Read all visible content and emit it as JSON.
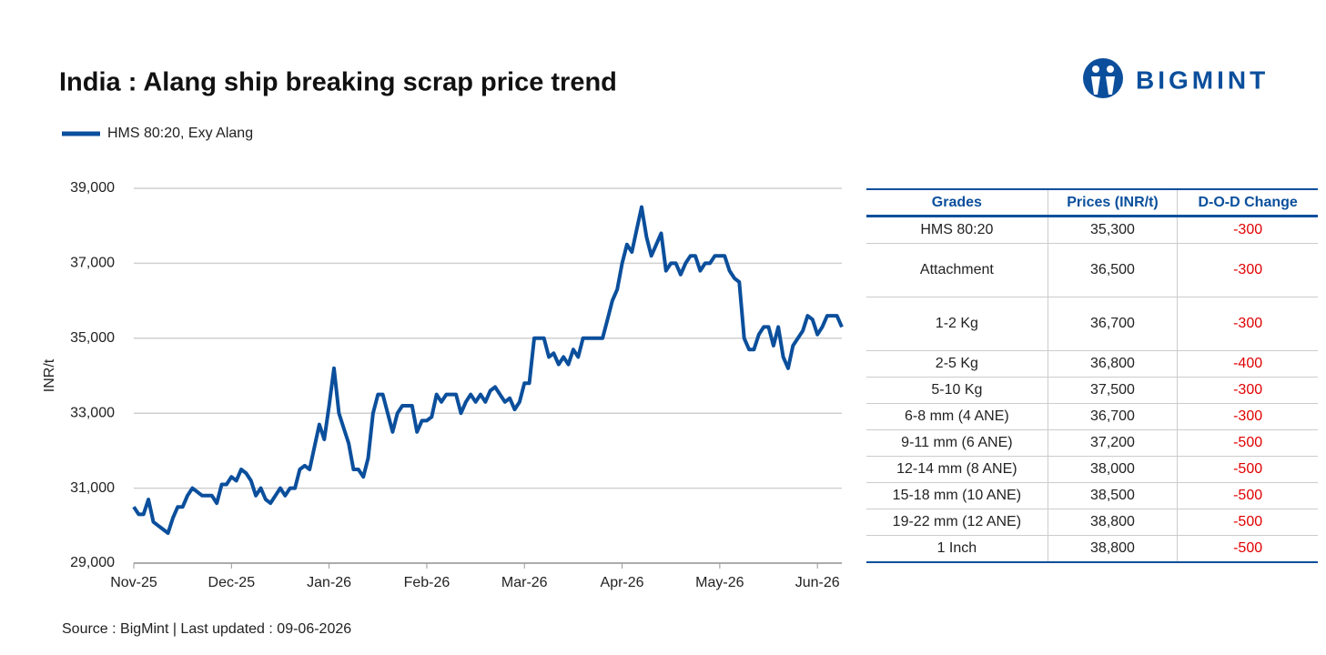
{
  "brand": "BIGMINT",
  "source": "Source : BigMint | Last updated : 09-06-2026",
  "chart_data": {
    "type": "line",
    "title": "India : Alang ship breaking scrap price trend",
    "y_label": "INR/t",
    "legend": "top-left",
    "grid": true,
    "ylim": [
      29000,
      39000
    ],
    "yticks": [
      {
        "value": 29000,
        "label": "29,000"
      },
      {
        "value": 31000,
        "label": "31,000"
      },
      {
        "value": 33000,
        "label": "33,000"
      },
      {
        "value": 35000,
        "label": "35,000"
      },
      {
        "value": 37000,
        "label": "37,000"
      },
      {
        "value": 39000,
        "label": "39,000"
      }
    ],
    "categories": [
      "Nov-25",
      null,
      null,
      null,
      null,
      null,
      null,
      null,
      null,
      null,
      null,
      null,
      null,
      null,
      null,
      null,
      null,
      null,
      null,
      null,
      "Dec-25",
      null,
      null,
      null,
      null,
      null,
      null,
      null,
      null,
      null,
      null,
      null,
      null,
      null,
      null,
      null,
      null,
      null,
      null,
      null,
      "Jan-26",
      null,
      null,
      null,
      null,
      null,
      null,
      null,
      null,
      null,
      null,
      null,
      null,
      null,
      null,
      null,
      null,
      null,
      null,
      null,
      "Feb-26",
      null,
      null,
      null,
      null,
      null,
      null,
      null,
      null,
      null,
      null,
      null,
      null,
      null,
      null,
      null,
      null,
      null,
      null,
      null,
      "Mar-26",
      null,
      null,
      null,
      null,
      null,
      null,
      null,
      null,
      null,
      null,
      null,
      null,
      null,
      null,
      null,
      null,
      null,
      null,
      null,
      "Apr-26",
      null,
      null,
      null,
      null,
      null,
      null,
      null,
      null,
      null,
      null,
      null,
      null,
      null,
      null,
      null,
      null,
      null,
      null,
      null,
      "May-26",
      null,
      null,
      null,
      null,
      null,
      null,
      null,
      null,
      null,
      null,
      null,
      null,
      null,
      null,
      null,
      null,
      null,
      null,
      null,
      "Jun-26",
      null,
      null,
      null,
      null,
      null
    ],
    "series": [
      {
        "name": "HMS 80:20, Exy Alang",
        "color": "#0b4f9c",
        "values": [
          30500,
          30300,
          30300,
          30700,
          30100,
          30000,
          29900,
          29800,
          30200,
          30500,
          30500,
          30800,
          31000,
          30900,
          30800,
          30800,
          30800,
          30600,
          31100,
          31100,
          31300,
          31200,
          31500,
          31400,
          31200,
          30800,
          31000,
          30700,
          30600,
          30800,
          31000,
          30800,
          31000,
          31000,
          31500,
          31600,
          31500,
          32100,
          32700,
          32300,
          33200,
          34200,
          33000,
          32600,
          32200,
          31500,
          31500,
          31300,
          31800,
          33000,
          33500,
          33500,
          33000,
          32500,
          33000,
          33200,
          33200,
          33200,
          32500,
          32800,
          32800,
          32900,
          33500,
          33300,
          33500,
          33500,
          33500,
          33000,
          33300,
          33500,
          33300,
          33500,
          33300,
          33600,
          33700,
          33500,
          33300,
          33400,
          33100,
          33300,
          33800,
          33800,
          35000,
          35000,
          35000,
          34500,
          34600,
          34300,
          34500,
          34300,
          34700,
          34500,
          35000,
          35000,
          35000,
          35000,
          35000,
          35500,
          36000,
          36300,
          37000,
          37500,
          37300,
          37900,
          38500,
          37700,
          37200,
          37500,
          37800,
          36800,
          37000,
          37000,
          36700,
          37000,
          37200,
          37200,
          36800,
          37000,
          37000,
          37200,
          37200,
          37200,
          36800,
          36600,
          36500,
          35000,
          34700,
          34700,
          35100,
          35300,
          35300,
          34800,
          35300,
          34500,
          34200,
          34800,
          35000,
          35200,
          35600,
          35500,
          35100,
          35300,
          35600,
          35600,
          35600,
          35300
        ]
      }
    ]
  },
  "table": {
    "headers": [
      "Grades",
      "Prices (INR/t)",
      "D-O-D Change"
    ],
    "rows": [
      [
        "HMS 80:20",
        "35,300",
        "-300"
      ],
      [
        "Attachment",
        "36,500",
        "-300"
      ],
      [
        "1-2 Kg",
        "36,700",
        "-300"
      ],
      [
        "2-5 Kg",
        "36,800",
        "-400"
      ],
      [
        "5-10 Kg",
        "37,500",
        "-300"
      ],
      [
        "6-8 mm (4 ANE)",
        "36,700",
        "-300"
      ],
      [
        "9-11 mm (6 ANE)",
        "37,200",
        "-500"
      ],
      [
        "12-14 mm (8 ANE)",
        "38,000",
        "-500"
      ],
      [
        "15-18 mm (10 ANE)",
        "38,500",
        "-500"
      ],
      [
        "19-22 mm (12 ANE)",
        "38,800",
        "-500"
      ],
      [
        "1 Inch",
        "38,800",
        "-500"
      ]
    ]
  }
}
